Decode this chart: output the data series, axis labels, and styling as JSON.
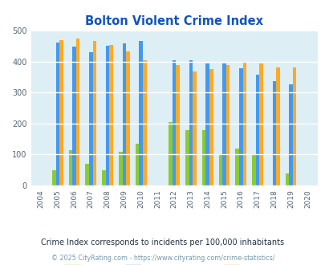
{
  "title": "Bolton Violent Crime Index",
  "subtitle": "Crime Index corresponds to incidents per 100,000 inhabitants",
  "copyright": "© 2025 CityRating.com - https://www.cityrating.com/crime-statistics/",
  "years": [
    2004,
    2005,
    2006,
    2007,
    2008,
    2009,
    2010,
    2011,
    2012,
    2013,
    2014,
    2015,
    2016,
    2017,
    2018,
    2019,
    2020
  ],
  "bolton": [
    null,
    50,
    115,
    70,
    50,
    110,
    135,
    null,
    205,
    180,
    180,
    100,
    120,
    98,
    null,
    40,
    null
  ],
  "massachusetts": [
    null,
    460,
    448,
    430,
    450,
    458,
    465,
    null,
    405,
    405,
    394,
    394,
    378,
    357,
    337,
    327,
    null
  ],
  "national": [
    null,
    468,
    474,
    466,
    454,
    432,
    404,
    null,
    388,
    368,
    376,
    388,
    398,
    394,
    380,
    380,
    null
  ],
  "bolton_color": "#88cc33",
  "massachusetts_color": "#4499ee",
  "national_color": "#ffaa22",
  "bg_color": "#ddeef5",
  "ylim": [
    0,
    500
  ],
  "yticks": [
    0,
    100,
    200,
    300,
    400,
    500
  ],
  "title_color": "#1155bb",
  "subtitle_color": "#223344",
  "copyright_color": "#7799aa",
  "bar_width": 0.22
}
